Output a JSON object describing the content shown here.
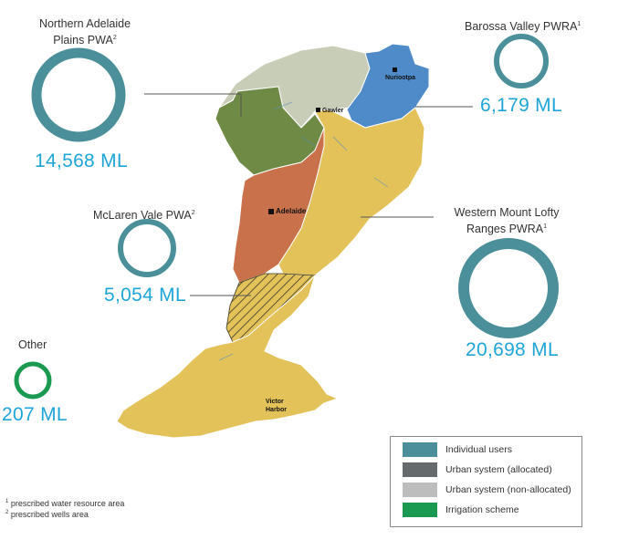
{
  "colors": {
    "individual_users": "#4a8f99",
    "urban_allocated": "#666a6c",
    "urban_non_allocated": "#bdbdbd",
    "irrigation_scheme": "#1a9a50",
    "volume_text": "#1ea5d8",
    "northern_adelaide_plains": "#6f8a45",
    "northern_plains_grey": "#c8cdb8",
    "barossa": "#4f8ac9",
    "mclaren_vale": "#c9714a",
    "western_mount_lofty": "#e4c25a"
  },
  "regions": {
    "northern_adelaide": {
      "title_line1": "Northern Adelaide",
      "title_line2": "Plains PWA",
      "sup": "2",
      "volume": "14,568 ML",
      "volume_value": 14568
    },
    "barossa": {
      "title": "Barossa Valley PWRA",
      "sup": "1",
      "volume": "6,179 ML",
      "volume_value": 6179
    },
    "mclaren_vale": {
      "title": "McLaren Vale PWA",
      "sup": "2",
      "volume": "5,054 ML",
      "volume_value": 5054
    },
    "western_mount_lofty": {
      "title_line1": "Western Mount Lofty",
      "title_line2": "Ranges PWRA",
      "sup": "1",
      "volume": "20,698 ML",
      "volume_value": 20698
    },
    "other": {
      "title": "Other",
      "volume": "207 ML",
      "volume_value": 207
    }
  },
  "towns": {
    "nuriootpa": "Nuriootpa",
    "gawler": "Gawler",
    "adelaide": "Adelaide",
    "victor_harbor_line1": "Victor",
    "victor_harbor_line2": "Harbor"
  },
  "legend": [
    {
      "label": "Individual users",
      "color": "#4a8f99"
    },
    {
      "label": "Urban system (allocated)",
      "color": "#666a6c"
    },
    {
      "label": "Urban system (non-allocated)",
      "color": "#bdbdbd"
    },
    {
      "label": "Irrigation scheme",
      "color": "#1a9a50"
    }
  ],
  "footnotes": {
    "f1_sup": "1",
    "f1": "prescribed water resource area",
    "f2_sup": "2",
    "f2": "prescribed wells area"
  }
}
